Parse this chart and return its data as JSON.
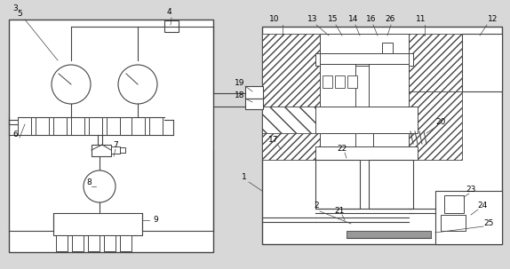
{
  "bg_color": "#d8d8d8",
  "line_color": "#444444",
  "fig_width": 5.74,
  "fig_height": 3.03,
  "dpi": 100
}
